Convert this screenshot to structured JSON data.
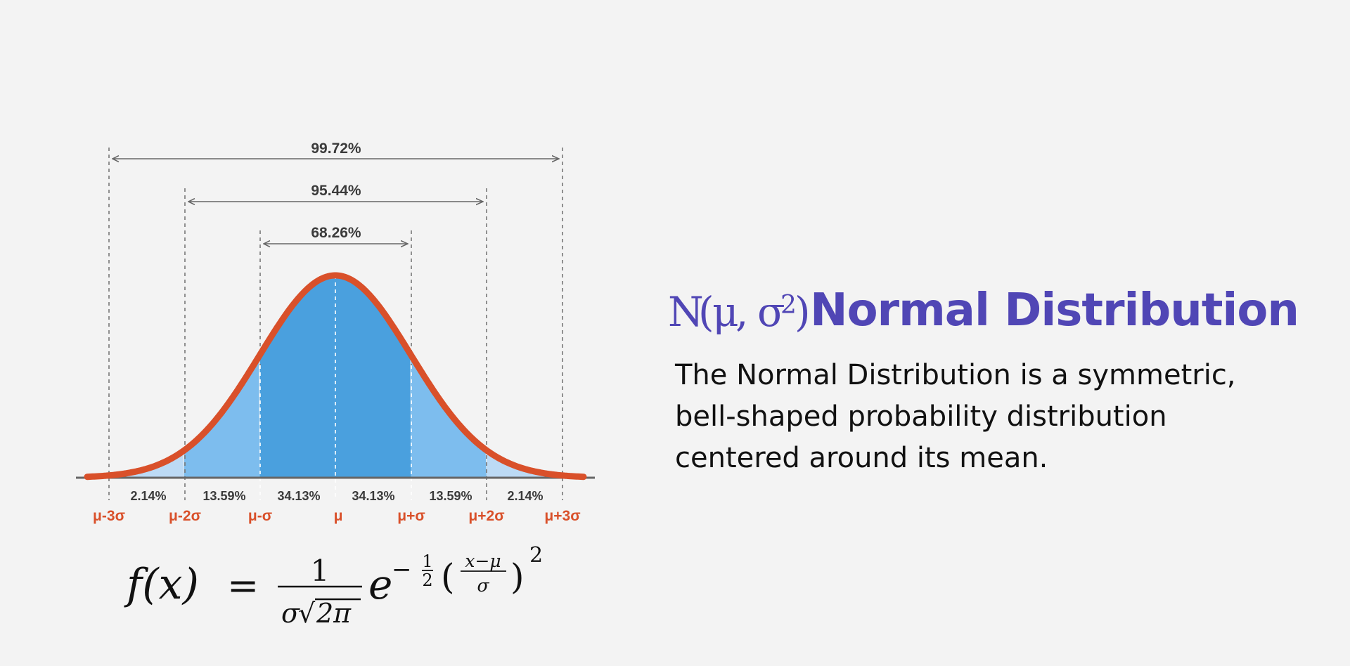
{
  "title": "Normal Distribution",
  "notation": {
    "N": "N",
    "mu": "μ",
    "sigma": "σ",
    "sup": "2"
  },
  "description": [
    "The Normal Distribution is a symmetric,",
    "bell-shaped probability distribution",
    "centered around its mean."
  ],
  "ranges": [
    {
      "label": "99.72%",
      "from": -3,
      "to": 3
    },
    {
      "label": "95.44%",
      "from": -2,
      "to": 2
    },
    {
      "label": "68.26%",
      "from": -1,
      "to": 1
    }
  ],
  "segments": [
    "2.14%",
    "13.59%",
    "34.13%",
    "34.13%",
    "13.59%",
    "2.14%"
  ],
  "sigma_labels": [
    "μ-3σ",
    "μ-2σ",
    "μ-σ",
    "μ",
    "μ+σ",
    "μ+2σ",
    "μ+3σ"
  ],
  "formula": {
    "lhs": "f(x)",
    "eq": "=",
    "num": "1",
    "den_sigma": "σ",
    "den_root": "√",
    "den_inner": "2π",
    "base": "e",
    "neg": "−",
    "half_num": "1",
    "half_den": "2",
    "lpar": "(",
    "frac_num": "x−μ",
    "frac_den": "σ",
    "rpar": ")",
    "pow": "2"
  },
  "colors": {
    "curve": "#d9502a",
    "fill_inner": "#4aa0de",
    "fill_outer": "#7dbdee",
    "fill_tail": "#bcdaf5",
    "accent": "#5046b5",
    "axis": "#666666"
  }
}
